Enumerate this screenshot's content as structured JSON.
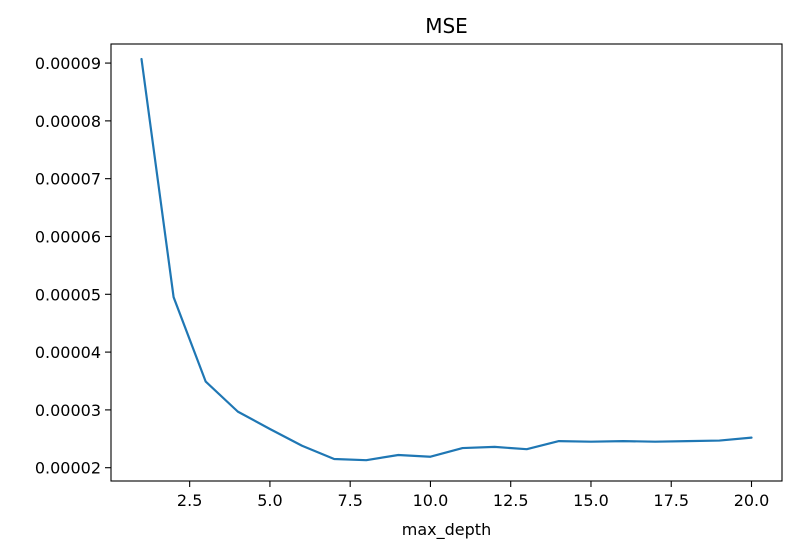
{
  "chart_data": {
    "type": "line",
    "title": "MSE",
    "xlabel": "max_depth",
    "ylabel": "",
    "xlim": [
      0.05,
      20.95
    ],
    "ylim": [
      1.77e-05,
      9.33e-05
    ],
    "x_ticks": [
      2.5,
      5.0,
      7.5,
      10.0,
      12.5,
      15.0,
      17.5,
      20.0
    ],
    "x_tick_labels": [
      "2.5",
      "5.0",
      "7.5",
      "10.0",
      "12.5",
      "15.0",
      "17.5",
      "20.0"
    ],
    "y_ticks": [
      2e-05,
      3e-05,
      4e-05,
      5e-05,
      6e-05,
      7e-05,
      8e-05,
      9e-05
    ],
    "y_tick_labels": [
      "0.00002",
      "0.00003",
      "0.00004",
      "0.00005",
      "0.00006",
      "0.00007",
      "0.00008",
      "0.00009"
    ],
    "grid": false,
    "color": "#1f77b4",
    "series": [
      {
        "x": [
          1,
          2,
          3,
          4,
          5,
          6,
          7,
          8,
          9,
          10,
          11,
          12,
          13,
          14,
          15,
          16,
          17,
          18,
          19,
          20
        ],
        "values": [
          9.07e-05,
          4.95e-05,
          3.49e-05,
          2.97e-05,
          2.67e-05,
          2.38e-05,
          2.15e-05,
          2.13e-05,
          2.22e-05,
          2.19e-05,
          2.34e-05,
          2.36e-05,
          2.32e-05,
          2.46e-05,
          2.45e-05,
          2.46e-05,
          2.45e-05,
          2.46e-05,
          2.47e-05,
          2.52e-05
        ]
      }
    ]
  }
}
